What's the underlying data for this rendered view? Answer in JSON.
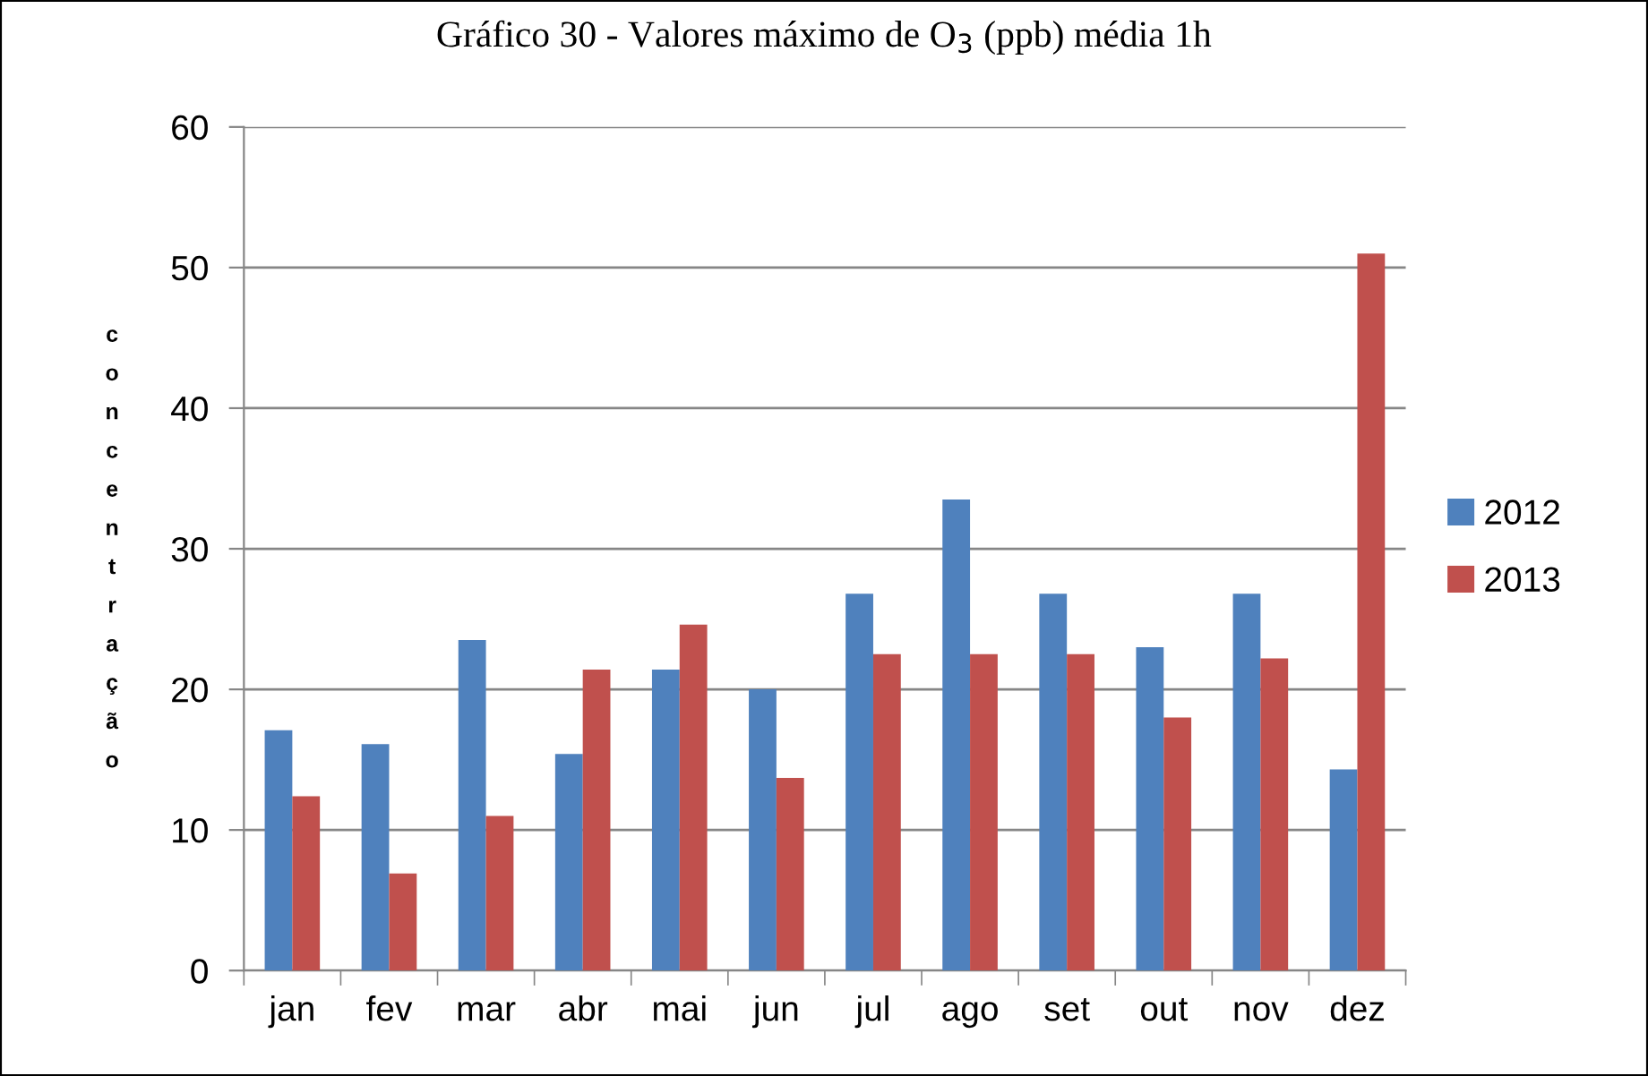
{
  "chart_data": {
    "type": "bar",
    "title": "Gráfico 30 - Valores máximo de O$_{3}$ (ppb) média 1h",
    "ylabel": "concentração",
    "categories": [
      "jan",
      "fev",
      "mar",
      "abr",
      "mai",
      "jun",
      "jul",
      "ago",
      "set",
      "out",
      "nov",
      "dez"
    ],
    "series": [
      {
        "name": "2012",
        "color": "#4f81bd",
        "values": [
          17.1,
          16.1,
          23.5,
          15.4,
          21.4,
          20.0,
          26.8,
          33.5,
          26.8,
          23.0,
          26.8,
          14.3
        ]
      },
      {
        "name": "2013",
        "color": "#c0504d",
        "values": [
          12.4,
          6.9,
          11.0,
          21.4,
          24.6,
          13.7,
          22.5,
          22.5,
          22.5,
          18.0,
          22.2,
          51
        ]
      }
    ],
    "ylim": [
      0,
      60
    ],
    "yticks": [
      0,
      10,
      20,
      30,
      40,
      50,
      60
    ],
    "grid": "y",
    "legend": "right"
  }
}
